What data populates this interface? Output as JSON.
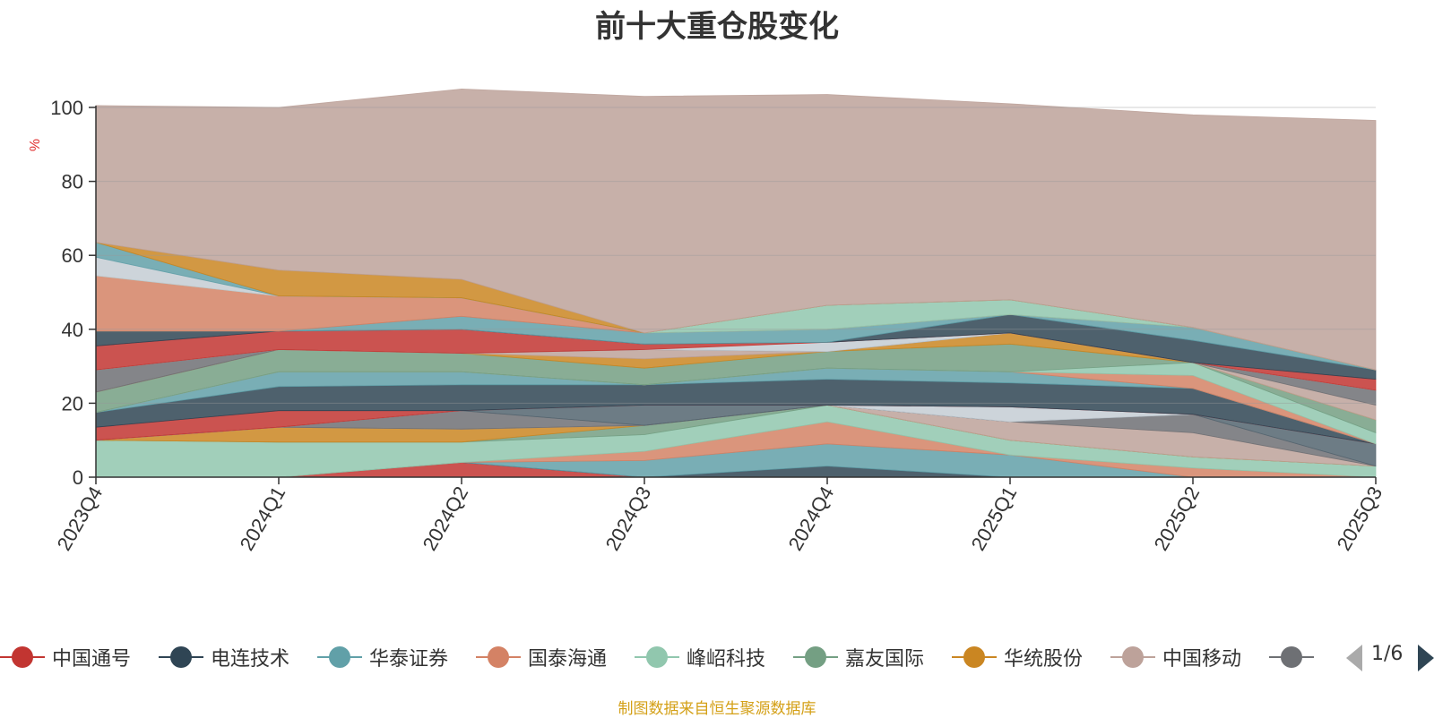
{
  "title": "前十大重仓股变化",
  "source_note": "制图数据来自恒生聚源数据库",
  "pager": {
    "text": "1/6"
  },
  "chart_data": {
    "type": "area",
    "stacked": true,
    "title": "前十大重仓股变化",
    "ylabel": "%",
    "ylim": [
      0,
      100
    ],
    "yticks": [
      0,
      20,
      40,
      60,
      80,
      100
    ],
    "grid": true,
    "legend_position": "bottom",
    "categories": [
      "2023Q4",
      "2024Q1",
      "2024Q2",
      "2024Q3",
      "2024Q4",
      "2025Q1",
      "2025Q2",
      "2025Q3"
    ],
    "series": [
      {
        "name": "中国通号",
        "color": "#c23531",
        "values": [
          0,
          0,
          4,
          0,
          0,
          0,
          0,
          0
        ]
      },
      {
        "name": "电连技术",
        "color": "#2f4554",
        "values": [
          0,
          0,
          0,
          0,
          3,
          0,
          0,
          0
        ]
      },
      {
        "name": "华泰证券",
        "color": "#61a0a8",
        "values": [
          0,
          0,
          0,
          4.5,
          6,
          6,
          0,
          0
        ]
      },
      {
        "name": "国泰海通",
        "color": "#d48265",
        "values": [
          0,
          0,
          0,
          2.5,
          6,
          0,
          2.5,
          0
        ]
      },
      {
        "name": "峰岹科技",
        "color": "#91c7ae",
        "values": [
          10,
          9.5,
          5.5,
          4.5,
          4.5,
          4,
          3,
          3
        ]
      },
      {
        "name": "嘉友国际",
        "color": "#749f83",
        "values": [
          0,
          0,
          0,
          2.5,
          0,
          0,
          0,
          0
        ]
      },
      {
        "name": "华统股份",
        "color": "#ca8622",
        "values": [
          0,
          4,
          3.5,
          0,
          0,
          0,
          0,
          0
        ]
      },
      {
        "name": "中国移动",
        "color": "#bda29a",
        "values": [
          0,
          0,
          0,
          0,
          0,
          5,
          6.5,
          0
        ]
      },
      {
        "name": "",
        "color": "#6e7074",
        "values": [
          0,
          0,
          5,
          0,
          0,
          0,
          5,
          0
        ]
      },
      {
        "name": "",
        "color": "#546570",
        "values": [
          0,
          0,
          0,
          5.5,
          0,
          0,
          0,
          6
        ]
      },
      {
        "name": "",
        "color": "#c4ccd3",
        "values": [
          0,
          0,
          0,
          0,
          0,
          4,
          0,
          0
        ]
      },
      {
        "name": "",
        "color": "#c23531",
        "values": [
          3.5,
          4.5,
          0,
          0,
          0,
          0,
          0,
          0
        ]
      },
      {
        "name": "",
        "color": "#2f4554",
        "values": [
          4,
          6.5,
          7,
          5.5,
          7,
          6.5,
          7,
          0
        ]
      },
      {
        "name": "",
        "color": "#61a0a8",
        "values": [
          0,
          4,
          3.5,
          0,
          3,
          3,
          0,
          0
        ]
      },
      {
        "name": "",
        "color": "#d48265",
        "values": [
          0,
          0,
          0,
          0,
          0,
          0,
          3.5,
          0
        ]
      },
      {
        "name": "",
        "color": "#91c7ae",
        "values": [
          0,
          0,
          0,
          0,
          0,
          0,
          3.5,
          3
        ]
      },
      {
        "name": "",
        "color": "#749f83",
        "values": [
          5.5,
          6,
          5,
          4.5,
          4.5,
          7.5,
          0,
          3.5
        ]
      },
      {
        "name": "",
        "color": "#ca8622",
        "values": [
          0,
          0,
          0,
          2.5,
          0,
          3,
          0,
          0
        ]
      },
      {
        "name": "",
        "color": "#bda29a",
        "values": [
          0,
          0,
          0,
          2.5,
          0,
          0,
          0,
          4
        ]
      },
      {
        "name": "",
        "color": "#6e7074",
        "values": [
          6,
          0,
          0,
          0,
          0,
          0,
          0,
          4
        ]
      },
      {
        "name": "",
        "color": "#c4ccd3",
        "values": [
          0,
          0,
          0,
          0,
          2.5,
          0,
          0,
          0
        ]
      },
      {
        "name": "",
        "color": "#c23531",
        "values": [
          6.5,
          5,
          6.5,
          1.5,
          0,
          0,
          0,
          3
        ]
      },
      {
        "name": "",
        "color": "#2f4554",
        "values": [
          4,
          0,
          0,
          0,
          0,
          5,
          6,
          2.5
        ]
      },
      {
        "name": "",
        "color": "#61a0a8",
        "values": [
          0,
          0,
          3.5,
          3,
          3.5,
          0,
          3.5,
          0
        ]
      },
      {
        "name": "",
        "color": "#d48265",
        "values": [
          15,
          9.5,
          5,
          0,
          0,
          0,
          0,
          0
        ]
      },
      {
        "name": "",
        "color": "#91c7ae",
        "values": [
          0,
          0,
          0,
          0,
          6.5,
          4,
          0,
          0
        ]
      },
      {
        "name": "",
        "color": "#c4ccd3",
        "values": [
          5,
          0,
          0,
          0,
          0,
          0,
          0,
          0
        ]
      },
      {
        "name": "",
        "color": "#61a0a8",
        "values": [
          4,
          0,
          0,
          0,
          0,
          0,
          0,
          0
        ]
      },
      {
        "name": "",
        "color": "#ca8622",
        "values": [
          0,
          7,
          5,
          0,
          0,
          0,
          0,
          0
        ]
      },
      {
        "name": "",
        "color": "#bda29a",
        "values": [
          37,
          44,
          51.5,
          64,
          57,
          53,
          57.5,
          67.5
        ]
      }
    ]
  }
}
